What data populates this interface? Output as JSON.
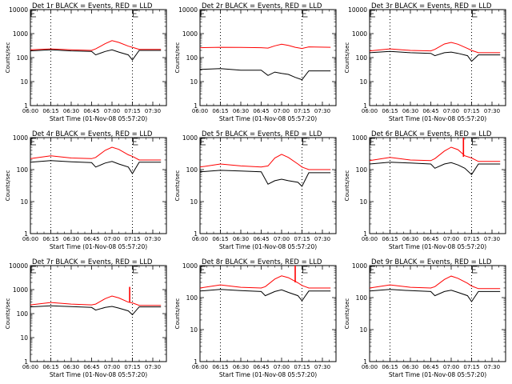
{
  "chart_data": [
    {
      "type": "line",
      "title": "Det 1r BLACK = Events, RED = LLD",
      "xlabel": "Start Time (01-Nov-08 05:57:20)",
      "ylabel": "Counts/sec",
      "x_ticks": [
        "06:00",
        "06:15",
        "06:30",
        "06:45",
        "07:00",
        "07:15",
        "07:30"
      ],
      "y_ticks": [
        "1",
        "10",
        "100",
        "1000",
        "10000"
      ],
      "y_scale": "log",
      "ylim": [
        1,
        10000
      ],
      "dotted_vlines": [
        "06:15",
        "07:15"
      ],
      "corner_marks": [
        "06:00",
        "07:15"
      ],
      "x": [
        "06:00",
        "06:15",
        "06:30",
        "06:45",
        "06:48",
        "06:55",
        "07:00",
        "07:05",
        "07:12",
        "07:15",
        "07:20",
        "07:36"
      ],
      "series": [
        {
          "values": [
            210,
            230,
            210,
            200,
            230,
            380,
            510,
            430,
            300,
            270,
            220,
            220
          ]
        },
        {
          "values": [
            190,
            210,
            190,
            180,
            130,
            180,
            210,
            170,
            130,
            80,
            200,
            200
          ]
        }
      ],
      "colors": [
        "#ff0000",
        "#000000"
      ]
    },
    {
      "type": "line",
      "title": "Det 2r BLACK = Events, RED = LLD",
      "xlabel": "Start Time (01-Nov-08 05:57:20)",
      "ylabel": "Counts/sec",
      "x_ticks": [
        "06:00",
        "06:15",
        "06:30",
        "06:45",
        "07:00",
        "07:15",
        "07:30"
      ],
      "y_ticks": [
        "1",
        "10",
        "100",
        "1000",
        "10000"
      ],
      "y_scale": "log",
      "ylim": [
        1,
        10000
      ],
      "dotted_vlines": [
        "06:15",
        "07:15"
      ],
      "corner_marks": [
        "06:00",
        "07:15"
      ],
      "x": [
        "06:00",
        "06:15",
        "06:30",
        "06:45",
        "06:50",
        "06:55",
        "07:00",
        "07:05",
        "07:10",
        "07:15",
        "07:20",
        "07:36"
      ],
      "series": [
        {
          "values": [
            260,
            270,
            265,
            260,
            250,
            310,
            360,
            320,
            270,
            240,
            280,
            270
          ]
        },
        {
          "values": [
            32,
            35,
            30,
            30,
            18,
            25,
            22,
            20,
            15,
            12,
            28,
            28
          ]
        }
      ],
      "colors": [
        "#ff0000",
        "#000000"
      ]
    },
    {
      "type": "line",
      "title": "Det 3r BLACK = Events, RED = LLD",
      "xlabel": "Start Time (01-Nov-08 05:57:20)",
      "ylabel": "Counts/sec",
      "x_ticks": [
        "06:00",
        "06:15",
        "06:30",
        "06:45",
        "07:00",
        "07:15",
        "07:30"
      ],
      "y_ticks": [
        "1",
        "10",
        "100",
        "1000",
        "10000"
      ],
      "y_scale": "log",
      "ylim": [
        1,
        10000
      ],
      "dotted_vlines": [
        "06:15",
        "07:15"
      ],
      "corner_marks": [
        "06:00",
        "07:15"
      ],
      "x": [
        "06:00",
        "06:15",
        "06:30",
        "06:45",
        "06:48",
        "06:55",
        "07:00",
        "07:05",
        "07:12",
        "07:15",
        "07:20",
        "07:36"
      ],
      "series": [
        {
          "values": [
            190,
            230,
            200,
            190,
            220,
            370,
            430,
            360,
            240,
            200,
            160,
            160
          ]
        },
        {
          "values": [
            160,
            180,
            160,
            150,
            120,
            160,
            170,
            150,
            120,
            70,
            130,
            130
          ]
        }
      ],
      "colors": [
        "#ff0000",
        "#000000"
      ]
    },
    {
      "type": "line",
      "title": "Det 4r BLACK = Events, RED = LLD",
      "xlabel": "Start Time (01-Nov-08 05:57:20)",
      "ylabel": "Counts/sec",
      "x_ticks": [
        "06:00",
        "06:15",
        "06:30",
        "06:45",
        "07:00",
        "07:15",
        "07:30"
      ],
      "y_ticks": [
        "1",
        "10",
        "100",
        "1000"
      ],
      "y_scale": "log",
      "ylim": [
        1,
        1000
      ],
      "dotted_vlines": [
        "06:15",
        "07:15"
      ],
      "corner_marks": [
        "06:00",
        "07:15"
      ],
      "x": [
        "06:00",
        "06:15",
        "06:30",
        "06:45",
        "06:48",
        "06:55",
        "07:00",
        "07:05",
        "07:12",
        "07:15",
        "07:20",
        "07:36"
      ],
      "series": [
        {
          "values": [
            220,
            270,
            230,
            220,
            240,
            400,
            500,
            430,
            290,
            260,
            200,
            200
          ]
        },
        {
          "values": [
            170,
            190,
            175,
            165,
            120,
            160,
            180,
            150,
            120,
            75,
            170,
            170
          ]
        }
      ],
      "colors": [
        "#ff0000",
        "#000000"
      ]
    },
    {
      "type": "line",
      "title": "Det 5r BLACK = Events, RED = LLD",
      "xlabel": "Start Time (01-Nov-08 05:57:20)",
      "ylabel": "Counts/sec",
      "x_ticks": [
        "06:00",
        "06:15",
        "06:30",
        "06:45",
        "07:00",
        "07:15",
        "07:30"
      ],
      "y_ticks": [
        "1",
        "10",
        "100",
        "1000"
      ],
      "y_scale": "log",
      "ylim": [
        1,
        1000
      ],
      "dotted_vlines": [
        "06:15",
        "07:15"
      ],
      "corner_marks": [
        "06:00",
        "07:15"
      ],
      "x": [
        "06:00",
        "06:15",
        "06:30",
        "06:45",
        "06:50",
        "06:55",
        "07:00",
        "07:05",
        "07:12",
        "07:15",
        "07:20",
        "07:36"
      ],
      "series": [
        {
          "values": [
            120,
            150,
            130,
            120,
            130,
            230,
            300,
            240,
            150,
            120,
            100,
            100
          ]
        },
        {
          "values": [
            85,
            95,
            90,
            85,
            35,
            45,
            50,
            45,
            40,
            30,
            80,
            80
          ]
        }
      ],
      "colors": [
        "#ff0000",
        "#000000"
      ]
    },
    {
      "type": "line",
      "title": "Det 6r BLACK = Events, RED = LLD",
      "xlabel": "Start Time (01-Nov-08 05:57:20)",
      "ylabel": "Counts/sec",
      "x_ticks": [
        "06:00",
        "06:15",
        "06:30",
        "06:45",
        "07:00",
        "07:15",
        "07:30"
      ],
      "y_ticks": [
        "1",
        "10",
        "100",
        "1000"
      ],
      "y_scale": "log",
      "ylim": [
        1,
        1000
      ],
      "dotted_vlines": [
        "06:15",
        "07:15"
      ],
      "corner_marks": [
        "06:00",
        "07:15"
      ],
      "x": [
        "06:00",
        "06:15",
        "06:30",
        "06:45",
        "06:48",
        "06:55",
        "07:00",
        "07:05",
        "07:10",
        "07:15",
        "07:20",
        "07:36"
      ],
      "series": [
        {
          "values": [
            190,
            240,
            200,
            190,
            220,
            380,
            500,
            420,
            270,
            230,
            180,
            180
          ]
        },
        {
          "values": [
            150,
            170,
            160,
            150,
            110,
            150,
            165,
            140,
            110,
            70,
            150,
            150
          ]
        }
      ],
      "spike": {
        "series_index": 0,
        "x": "07:09",
        "from": 250,
        "to": 1000
      },
      "colors": [
        "#ff0000",
        "#000000"
      ]
    },
    {
      "type": "line",
      "title": "Det 7r BLACK = Events, RED = LLD",
      "xlabel": "Start Time (01-Nov-08 05:57:20)",
      "ylabel": "Counts/sec",
      "x_ticks": [
        "06:00",
        "06:15",
        "06:30",
        "06:45",
        "07:00",
        "07:15",
        "07:30"
      ],
      "y_ticks": [
        "1",
        "10",
        "100",
        "1000",
        "10000"
      ],
      "y_scale": "log",
      "ylim": [
        1,
        10000
      ],
      "dotted_vlines": [
        "06:15",
        "07:15"
      ],
      "corner_marks": [
        "06:00",
        "07:15"
      ],
      "x": [
        "06:00",
        "06:15",
        "06:30",
        "06:45",
        "06:48",
        "06:55",
        "07:00",
        "07:05",
        "07:12",
        "07:15",
        "07:20",
        "07:36"
      ],
      "series": [
        {
          "values": [
            230,
            290,
            250,
            230,
            250,
            420,
            540,
            450,
            300,
            280,
            220,
            220
          ]
        },
        {
          "values": [
            190,
            210,
            195,
            180,
            140,
            180,
            200,
            170,
            130,
            90,
            190,
            190
          ]
        }
      ],
      "spike": {
        "series_index": 0,
        "x": "07:13",
        "from": 300,
        "to": 1300
      },
      "colors": [
        "#ff0000",
        "#000000"
      ]
    },
    {
      "type": "line",
      "title": "Det 8r BLACK = Events, RED = LLD",
      "xlabel": "Start Time (01-Nov-08 05:57:20)",
      "ylabel": "Counts/sec",
      "x_ticks": [
        "06:00",
        "06:15",
        "06:30",
        "06:45",
        "07:00",
        "07:15",
        "07:30"
      ],
      "y_ticks": [
        "1",
        "10",
        "100",
        "1000"
      ],
      "y_scale": "log",
      "ylim": [
        1,
        1000
      ],
      "dotted_vlines": [
        "06:15",
        "07:15"
      ],
      "corner_marks": [
        "06:00",
        "07:15"
      ],
      "x": [
        "06:00",
        "06:15",
        "06:30",
        "06:45",
        "06:48",
        "06:55",
        "07:00",
        "07:05",
        "07:12",
        "07:15",
        "07:20",
        "07:36"
      ],
      "series": [
        {
          "values": [
            200,
            250,
            210,
            200,
            220,
            380,
            480,
            420,
            290,
            240,
            200,
            200
          ]
        },
        {
          "values": [
            160,
            180,
            165,
            155,
            115,
            155,
            175,
            145,
            115,
            80,
            160,
            160
          ]
        }
      ],
      "spike": {
        "series_index": 0,
        "x": "07:10",
        "from": 300,
        "to": 1000
      },
      "colors": [
        "#ff0000",
        "#000000"
      ]
    },
    {
      "type": "line",
      "title": "Det 9r BLACK = Events, RED = LLD",
      "xlabel": "Start Time (01-Nov-08 05:57:20)",
      "ylabel": "Counts/sec",
      "x_ticks": [
        "06:00",
        "06:15",
        "06:30",
        "06:45",
        "07:00",
        "07:15",
        "07:30"
      ],
      "y_ticks": [
        "1",
        "10",
        "100",
        "1000"
      ],
      "y_scale": "log",
      "ylim": [
        1,
        1000
      ],
      "dotted_vlines": [
        "06:15",
        "07:15"
      ],
      "corner_marks": [
        "06:00",
        "07:15"
      ],
      "x": [
        "06:00",
        "06:15",
        "06:30",
        "06:45",
        "06:48",
        "06:55",
        "07:00",
        "07:05",
        "07:12",
        "07:15",
        "07:20",
        "07:36"
      ],
      "series": [
        {
          "values": [
            200,
            250,
            210,
            200,
            220,
            370,
            470,
            400,
            280,
            230,
            190,
            190
          ]
        },
        {
          "values": [
            160,
            180,
            165,
            155,
            115,
            155,
            170,
            145,
            115,
            75,
            155,
            155
          ]
        }
      ],
      "colors": [
        "#ff0000",
        "#000000"
      ]
    }
  ]
}
